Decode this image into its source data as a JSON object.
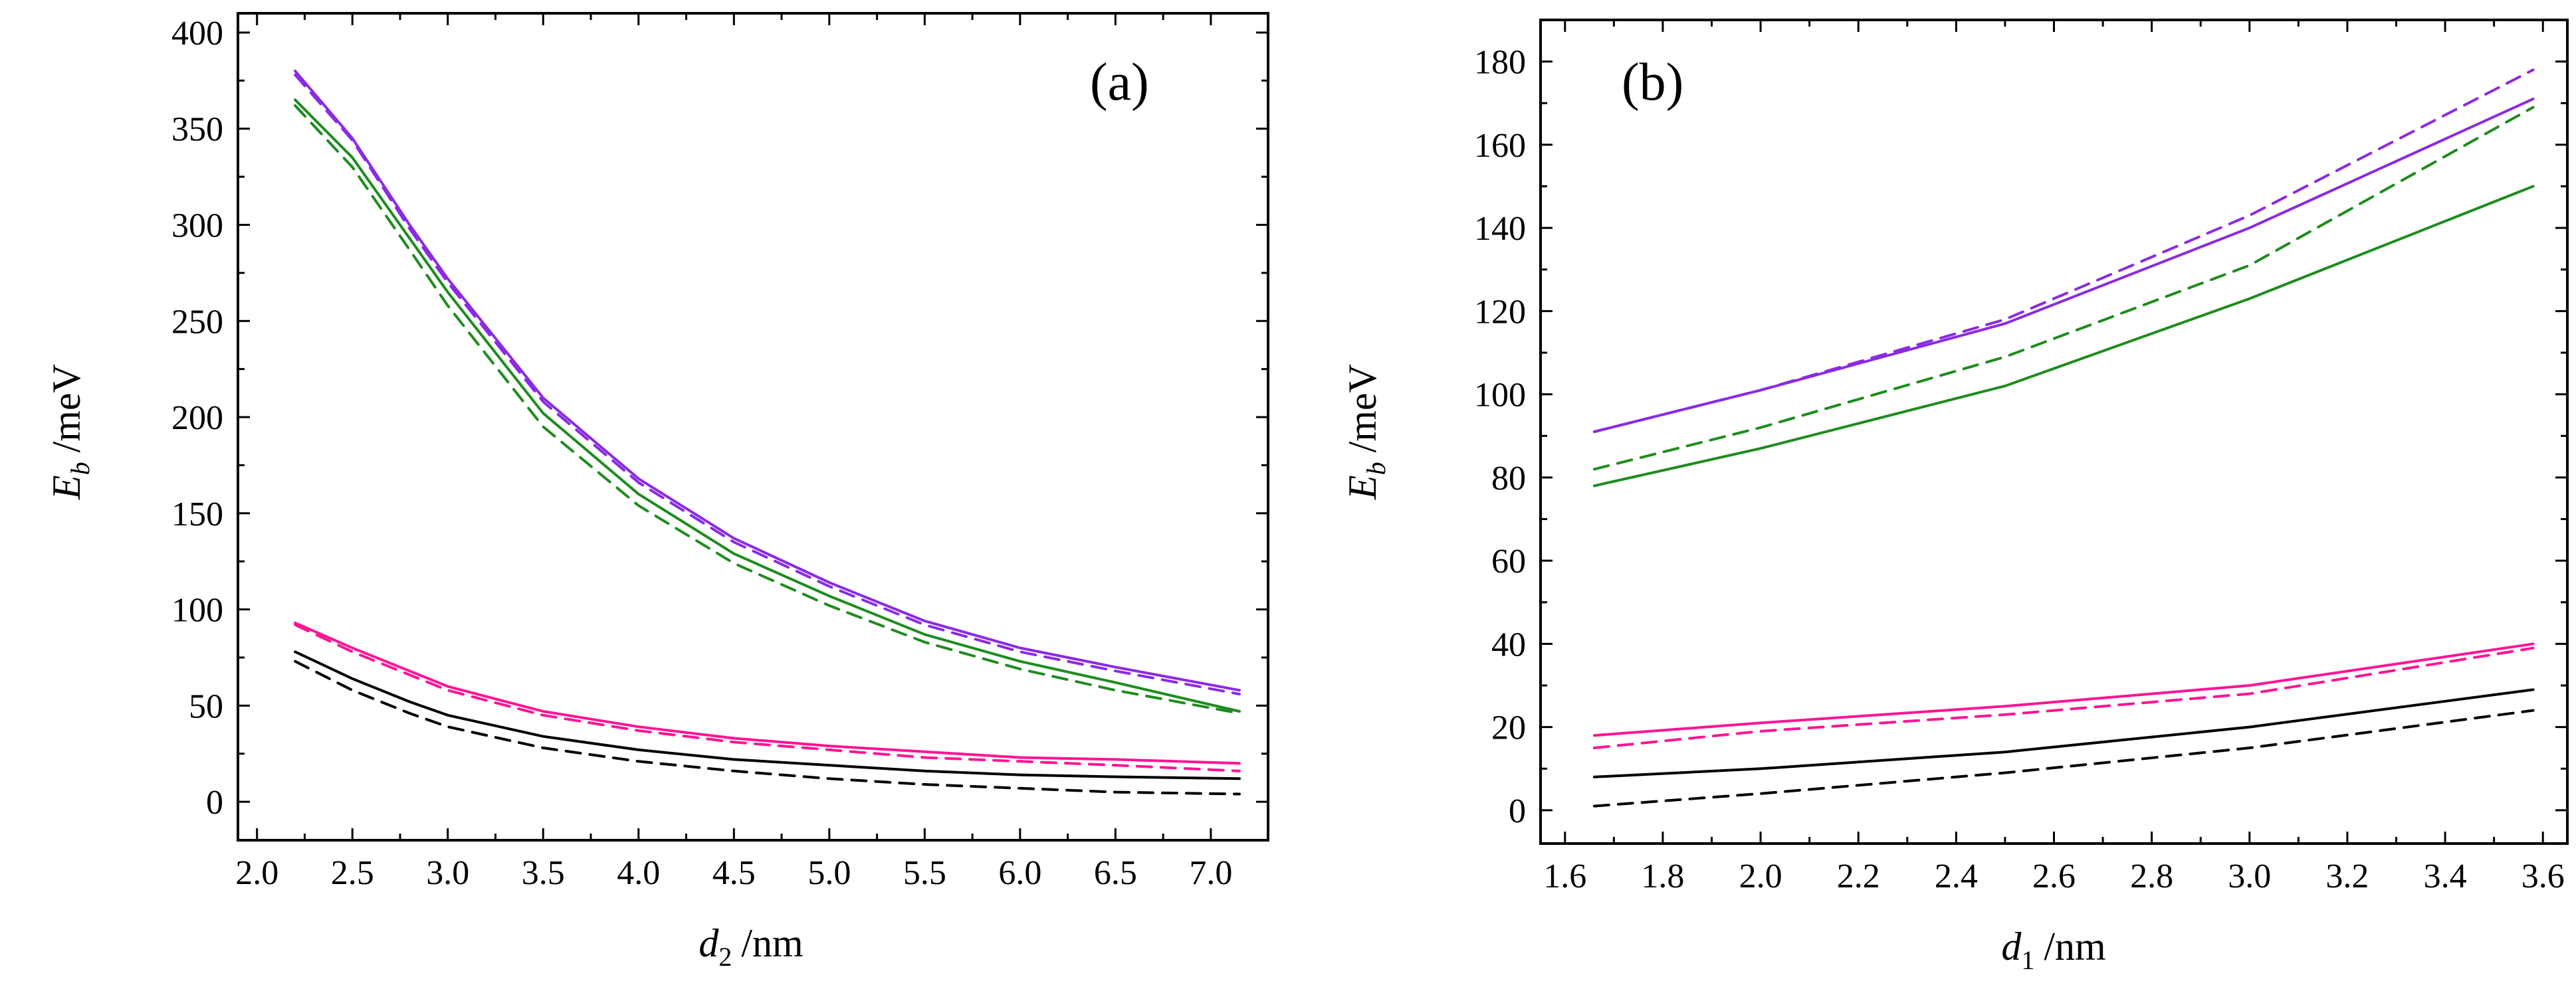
{
  "chart_data": [
    {
      "type": "line",
      "panel_label": "(a)",
      "xlabel": {
        "var": "d",
        "sub": "2",
        "unit": "/nm"
      },
      "ylabel": {
        "var": "E",
        "sub": "b",
        "unit": "/meV"
      },
      "xlim": [
        1.9,
        7.3
      ],
      "ylim": [
        -20,
        410
      ],
      "xticks": [
        2.0,
        2.5,
        3.0,
        3.5,
        4.0,
        4.5,
        5.0,
        5.5,
        6.0,
        6.5,
        7.0
      ],
      "xtick_labels": [
        "2.0",
        "2.5",
        "3.0",
        "3.5",
        "4.0",
        "4.5",
        "5.0",
        "5.5",
        "6.0",
        "6.5",
        "7.0"
      ],
      "yticks": [
        0,
        50,
        100,
        150,
        200,
        250,
        300,
        350,
        400
      ],
      "ytick_labels": [
        "0",
        "50",
        "100",
        "150",
        "200",
        "250",
        "300",
        "350",
        "400"
      ],
      "grid": false,
      "x": [
        2.2,
        2.5,
        2.8,
        3.0,
        3.5,
        4.0,
        4.5,
        5.0,
        5.5,
        6.0,
        6.5,
        7.15
      ],
      "series": [
        {
          "name": "purple-solid",
          "color": "#8a2be2",
          "dash": false,
          "values": [
            380,
            345,
            300,
            272,
            210,
            168,
            137,
            114,
            94,
            80,
            70,
            58
          ]
        },
        {
          "name": "purple-dashed",
          "color": "#8a2be2",
          "dash": true,
          "values": [
            378,
            344,
            298,
            270,
            208,
            166,
            135,
            112,
            92,
            78,
            68,
            56
          ]
        },
        {
          "name": "green-solid",
          "color": "#1e8c1e",
          "dash": false,
          "values": [
            365,
            335,
            293,
            265,
            202,
            160,
            129,
            107,
            87,
            73,
            62,
            47
          ]
        },
        {
          "name": "green-dashed",
          "color": "#1e8c1e",
          "dash": true,
          "values": [
            362,
            330,
            287,
            258,
            195,
            154,
            124,
            102,
            83,
            69,
            58,
            46
          ]
        },
        {
          "name": "magenta-solid",
          "color": "#ff1493",
          "dash": false,
          "values": [
            93,
            80,
            68,
            60,
            47,
            39,
            33,
            29,
            26,
            23,
            22,
            20
          ]
        },
        {
          "name": "magenta-dashed",
          "color": "#ff1493",
          "dash": true,
          "values": [
            92,
            78,
            66,
            58,
            45,
            37,
            31,
            27,
            23,
            21,
            19,
            16
          ]
        },
        {
          "name": "black-solid",
          "color": "#000000",
          "dash": false,
          "values": [
            78,
            64,
            52,
            45,
            34,
            27,
            22,
            19,
            16,
            14,
            13,
            12
          ]
        },
        {
          "name": "black-dashed",
          "color": "#000000",
          "dash": true,
          "values": [
            73,
            58,
            46,
            39,
            28,
            21,
            16,
            12,
            9,
            7,
            5,
            4
          ]
        }
      ]
    },
    {
      "type": "line",
      "panel_label": "(b)",
      "xlabel": {
        "var": "d",
        "sub": "1",
        "unit": "/nm"
      },
      "ylabel": {
        "var": "E",
        "sub": "b",
        "unit": "/meV"
      },
      "xlim": [
        1.55,
        3.65
      ],
      "ylim": [
        -8,
        190
      ],
      "xticks": [
        1.6,
        1.8,
        2.0,
        2.2,
        2.4,
        2.6,
        2.8,
        3.0,
        3.2,
        3.4,
        3.6
      ],
      "xtick_labels": [
        "1.6",
        "1.8",
        "2.0",
        "2.2",
        "2.4",
        "2.6",
        "2.8",
        "3.0",
        "3.2",
        "3.4",
        "3.6"
      ],
      "yticks": [
        0,
        20,
        40,
        60,
        80,
        100,
        120,
        140,
        160,
        180
      ],
      "ytick_labels": [
        "0",
        "20",
        "40",
        "60",
        "80",
        "100",
        "120",
        "140",
        "160",
        "180"
      ],
      "grid": false,
      "x": [
        1.66,
        2.0,
        2.5,
        3.0,
        3.58
      ],
      "series": [
        {
          "name": "purple-solid",
          "color": "#8a2be2",
          "dash": false,
          "values": [
            91,
            101,
            117,
            140,
            171
          ]
        },
        {
          "name": "purple-dashed",
          "color": "#8a2be2",
          "dash": true,
          "values": [
            91,
            101,
            118,
            143,
            178
          ]
        },
        {
          "name": "green-dashed",
          "color": "#1e8c1e",
          "dash": true,
          "values": [
            82,
            92,
            109,
            131,
            169
          ]
        },
        {
          "name": "green-solid",
          "color": "#1e8c1e",
          "dash": false,
          "values": [
            78,
            87,
            102,
            123,
            150
          ]
        },
        {
          "name": "magenta-solid",
          "color": "#ff1493",
          "dash": false,
          "values": [
            18,
            21,
            25,
            30,
            40
          ]
        },
        {
          "name": "magenta-dashed",
          "color": "#ff1493",
          "dash": true,
          "values": [
            15,
            19,
            23,
            28,
            39
          ]
        },
        {
          "name": "black-solid",
          "color": "#000000",
          "dash": false,
          "values": [
            8,
            10,
            14,
            20,
            29
          ]
        },
        {
          "name": "black-dashed",
          "color": "#000000",
          "dash": true,
          "values": [
            1,
            4,
            9,
            15,
            24
          ]
        }
      ]
    }
  ]
}
